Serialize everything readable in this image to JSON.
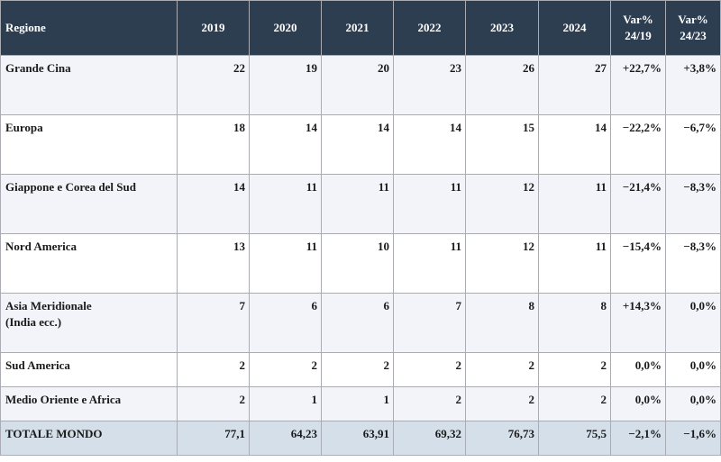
{
  "table": {
    "header": [
      "Regione",
      "2019",
      "2020",
      "2021",
      "2022",
      "2023",
      "2024",
      "Var%\n24/19",
      "Var%\n24/23"
    ],
    "rows": [
      [
        "Grande Cina",
        "22",
        "19",
        "20",
        "23",
        "26",
        "27",
        "+22,7%",
        "+3,8%"
      ],
      [
        "Europa",
        "18",
        "14",
        "14",
        "14",
        "15",
        "14",
        "−22,2%",
        "−6,7%"
      ],
      [
        "Giappone e Corea del Sud",
        "14",
        "11",
        "11",
        "11",
        "12",
        "11",
        "−21,4%",
        "−8,3%"
      ],
      [
        "Nord America",
        "13",
        "11",
        "10",
        "11",
        "12",
        "11",
        "−15,4%",
        "−8,3%"
      ],
      [
        "Asia Meridionale\n(India ecc.)",
        "7",
        "6",
        "6",
        "7",
        "8",
        "8",
        "+14,3%",
        "0,0%"
      ],
      [
        "Sud America",
        "2",
        "2",
        "2",
        "2",
        "2",
        "2",
        "0,0%",
        "0,0%"
      ],
      [
        "Medio Oriente e Africa",
        "2",
        "1",
        "1",
        "2",
        "2",
        "2",
        "0,0%",
        "0,0%"
      ],
      [
        "TOTALE MONDO",
        "77,1",
        "64,23",
        "63,91",
        "69,32",
        "76,73",
        "75,5",
        "−2,1%",
        "−1,6%"
      ]
    ]
  }
}
